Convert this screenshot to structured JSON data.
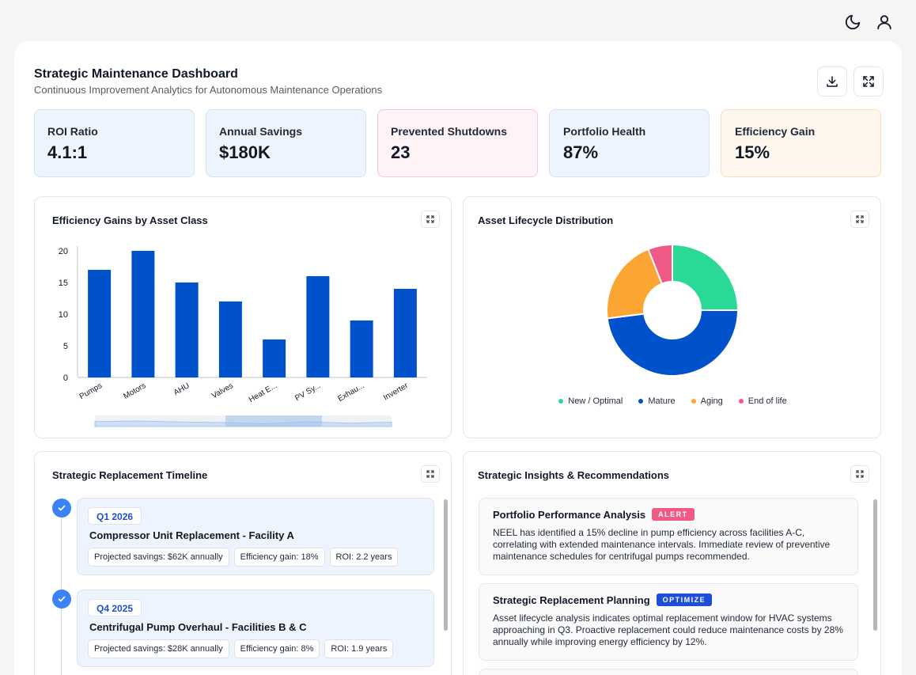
{
  "header": {
    "icons": {
      "theme": "moon-icon",
      "account": "user-icon"
    }
  },
  "dashboard": {
    "title": "Strategic Maintenance Dashboard",
    "subtitle": "Continuous Improvement Analytics for Autonomous Maintenance Operations",
    "toolbar": {
      "download_icon": "download-icon",
      "fullscreen_icon": "fullscreen-icon"
    }
  },
  "kpis": [
    {
      "label": "ROI Ratio",
      "value": "4.1:1"
    },
    {
      "label": "Annual Savings",
      "value": "$180K"
    },
    {
      "label": "Prevented Shutdowns",
      "value": "23"
    },
    {
      "label": "Portfolio Health",
      "value": "87%"
    },
    {
      "label": "Efficiency Gain",
      "value": "15%"
    }
  ],
  "colors": {
    "primary_blue": "#0052cc",
    "kpi_blue_bg": "#eef4fd",
    "kpi_pink_bg": "#fff3f6",
    "kpi_orange_bg": "#fff7ee",
    "pie": [
      "#2ad995",
      "#0052cc",
      "#fda533",
      "#f05a86"
    ]
  },
  "bar_card": {
    "title": "Efficiency Gains by Asset Class"
  },
  "pie_card": {
    "title": "Asset Lifecycle Distribution"
  },
  "chart_data": [
    {
      "type": "bar",
      "title": "Efficiency Gains by Asset Class",
      "categories": [
        "Pumps",
        "Motors",
        "AHU",
        "Valves",
        "Heat E...",
        "PV Sy...",
        "Exhau...",
        "Inverter"
      ],
      "values": [
        17,
        20,
        15,
        12,
        6,
        16,
        9,
        14
      ],
      "ylim": [
        0,
        20
      ],
      "yticks": [
        0,
        5,
        10,
        15,
        20
      ],
      "xlabel": "",
      "ylabel": "",
      "grid": false,
      "has_zoom_slider": true
    },
    {
      "type": "pie",
      "title": "Asset Lifecycle Distribution",
      "donut": true,
      "labels": [
        "New / Optimal",
        "Mature",
        "Aging",
        "End of life"
      ],
      "values": [
        25,
        48,
        21,
        6
      ],
      "legend": "bottom"
    }
  ],
  "timeline": {
    "title": "Strategic Replacement Timeline",
    "items": [
      {
        "quarter": "Q1 2026",
        "name": "Compressor Unit Replacement - Facility A",
        "tags": [
          "Projected savings: $62K annually",
          "Efficiency gain: 18%",
          "ROI: 2.2 years"
        ]
      },
      {
        "quarter": "Q4 2025",
        "name": "Centrifugal Pump Overhaul - Facilities B & C",
        "tags": [
          "Projected savings: $28K annually",
          "Efficiency gain: 8%",
          "ROI: 1.9 years"
        ]
      }
    ]
  },
  "insights": {
    "title": "Strategic Insights & Recommendations",
    "items": [
      {
        "title": "Portfolio Performance Analysis",
        "badge": "ALERT",
        "body": "NEEL has identified a 15% decline in pump efficiency across facilities A-C, correlating with extended maintenance intervals. Immediate review of preventive maintenance schedules for centrifugal pumps recommended."
      },
      {
        "title": "Strategic Replacement Planning",
        "badge": "OPTIMIZE",
        "body": "Asset lifecycle analysis indicates optimal replacement window for HVAC systems approaching in Q3. Proactive replacement could reduce maintenance costs by 28% annually while improving energy efficiency by 12%."
      }
    ]
  }
}
